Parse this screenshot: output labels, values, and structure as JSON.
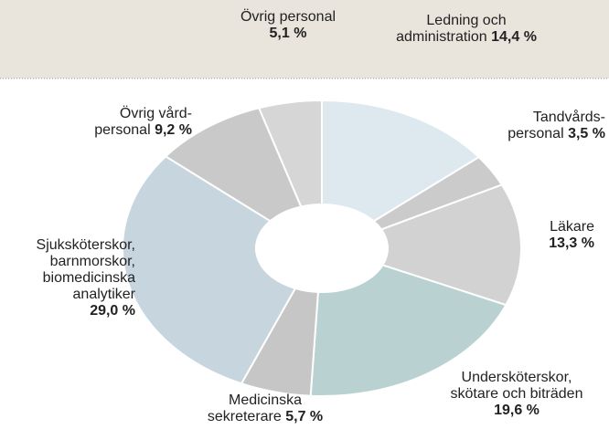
{
  "chart_data": {
    "type": "donut",
    "categories": [
      "Ledning och\nadministration",
      "Tandvårds-\npersonal",
      "Läkare",
      "Underskötersk­or,\nskötare och biträden",
      "Medicinska\nsekreterare",
      "Sjuksköterskor,\nbarnmorskor,\nbiomedicinska\nanalytiker",
      "Övrig vård-\npersonal",
      "Övrig personal"
    ],
    "values": [
      14.4,
      3.5,
      13.3,
      19.6,
      5.7,
      29.0,
      9.2,
      5.1
    ],
    "value_labels": [
      "14,4 %",
      "3,5 %",
      "13,3 %",
      "19,6 %",
      "5,7 %",
      "29,0 %",
      "9,2 %",
      "5,1 %"
    ],
    "colors": [
      "#dde9ee",
      "#cbcbcb",
      "#d2d2d2",
      "#b9d1d1",
      "#c6c6c6",
      "#c7d6de",
      "#c9c9c9",
      "#d6d6d6"
    ]
  }
}
